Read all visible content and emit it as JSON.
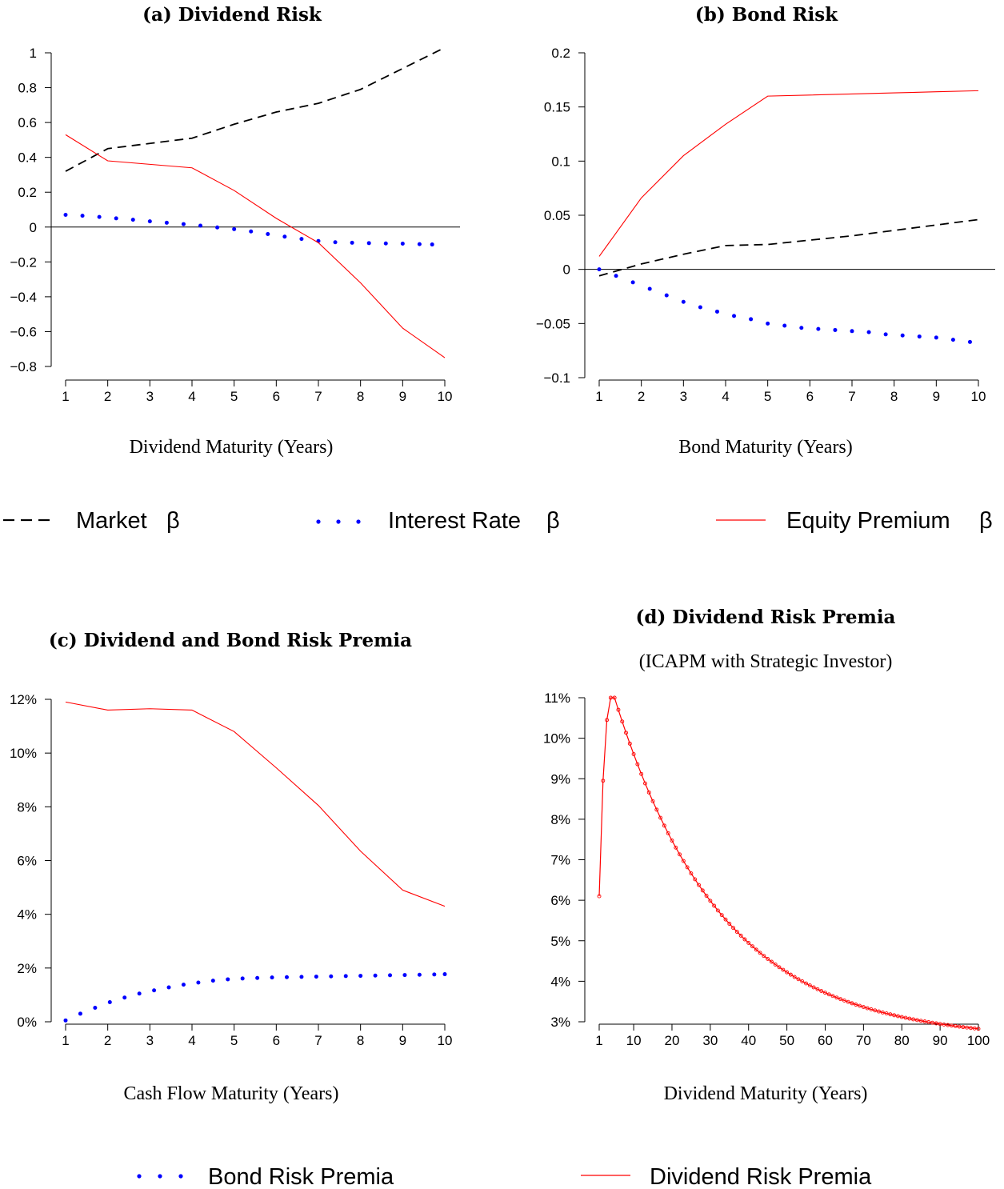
{
  "legend_top": {
    "items": [
      {
        "label": "Market",
        "symbol": "β",
        "style": "dashed",
        "color": "#000000"
      },
      {
        "label": "Interest Rate",
        "symbol": "β",
        "style": "dotted",
        "color": "#0000ff"
      },
      {
        "label": "Equity Premium",
        "symbol": "β",
        "style": "solid",
        "color": "#ff0000"
      }
    ]
  },
  "legend_bottom": {
    "items": [
      {
        "label": "Bond Risk Premia",
        "style": "dotted",
        "color": "#0000ff"
      },
      {
        "label": "Dividend Risk Premia",
        "style": "solid",
        "color": "#ff0000"
      }
    ]
  },
  "chart_data": [
    {
      "id": "a",
      "type": "line",
      "title": "(a) Dividend Risk",
      "subtitle": "",
      "xlabel": "Dividend Maturity (Years)",
      "ylabel": "",
      "xlim": [
        1,
        10
      ],
      "ylim": [
        -0.8,
        1
      ],
      "xticks": [
        1,
        2,
        3,
        4,
        5,
        6,
        7,
        8,
        9,
        10
      ],
      "xtick_labels": [
        "1",
        "2",
        "3",
        "4",
        "5",
        "6",
        "7",
        "8",
        "9",
        "10"
      ],
      "yticks": [
        -0.8,
        -0.6,
        -0.4,
        -0.2,
        0,
        0.2,
        0.4,
        0.6,
        0.8,
        1
      ],
      "ytick_labels": [
        "−0.8",
        "−0.6",
        "−0.4",
        "−0.2",
        "0",
        "0.2",
        "0.4",
        "0.6",
        "0.8",
        "1"
      ],
      "zero_line": true,
      "series": [
        {
          "key": "market",
          "style": "dashed",
          "color": "#000000",
          "x": [
            1,
            2,
            3,
            4,
            5,
            6,
            7,
            8,
            9,
            10
          ],
          "y": [
            0.32,
            0.45,
            0.48,
            0.51,
            0.59,
            0.66,
            0.71,
            0.79,
            0.91,
            1.03
          ]
        },
        {
          "key": "interest",
          "style": "dotted",
          "color": "#0000ff",
          "x": [
            1,
            1.4,
            1.8,
            2.2,
            2.6,
            3,
            3.4,
            3.8,
            4.2,
            4.6,
            5,
            5.4,
            5.8,
            6.2,
            6.6,
            7,
            7.4,
            7.8,
            8.2,
            8.6,
            9,
            9.4,
            9.7
          ],
          "y": [
            0.07,
            0.065,
            0.058,
            0.05,
            0.042,
            0.033,
            0.025,
            0.017,
            0.008,
            -0.002,
            -0.012,
            -0.025,
            -0.04,
            -0.055,
            -0.068,
            -0.08,
            -0.087,
            -0.09,
            -0.092,
            -0.094,
            -0.095,
            -0.098,
            -0.1
          ]
        },
        {
          "key": "equity",
          "style": "solid",
          "color": "#ff0000",
          "x": [
            1,
            2,
            3,
            4,
            5,
            6,
            7,
            8,
            9,
            10
          ],
          "y": [
            0.53,
            0.38,
            0.36,
            0.34,
            0.21,
            0.05,
            -0.09,
            -0.32,
            -0.58,
            -0.75
          ]
        }
      ]
    },
    {
      "id": "b",
      "type": "line",
      "title": "(b) Bond Risk",
      "subtitle": "",
      "xlabel": "Bond Maturity (Years)",
      "ylabel": "",
      "xlim": [
        1,
        10
      ],
      "ylim": [
        -0.1,
        0.2
      ],
      "xticks": [
        1,
        2,
        3,
        4,
        5,
        6,
        7,
        8,
        9,
        10
      ],
      "xtick_labels": [
        "1",
        "2",
        "3",
        "4",
        "5",
        "6",
        "7",
        "8",
        "9",
        "10"
      ],
      "yticks": [
        -0.1,
        -0.05,
        0,
        0.05,
        0.1,
        0.15,
        0.2
      ],
      "ytick_labels": [
        "−0.1",
        "−0.05",
        "0",
        "0.05",
        "0.1",
        "0.15",
        "0.2"
      ],
      "zero_line": true,
      "series": [
        {
          "key": "market",
          "style": "dashed",
          "color": "#000000",
          "x": [
            1,
            2,
            3,
            4,
            5,
            6,
            7,
            8,
            9,
            10
          ],
          "y": [
            -0.006,
            0.005,
            0.014,
            0.022,
            0.023,
            0.027,
            0.031,
            0.036,
            0.041,
            0.046
          ]
        },
        {
          "key": "interest",
          "style": "dotted",
          "color": "#0000ff",
          "x": [
            1,
            1.4,
            1.8,
            2.2,
            2.6,
            3,
            3.4,
            3.8,
            4.2,
            4.6,
            5,
            5.4,
            5.8,
            6.2,
            6.6,
            7,
            7.4,
            7.8,
            8.2,
            8.6,
            9,
            9.4,
            9.8
          ],
          "y": [
            0,
            -0.006,
            -0.012,
            -0.018,
            -0.024,
            -0.03,
            -0.035,
            -0.039,
            -0.043,
            -0.046,
            -0.05,
            -0.052,
            -0.054,
            -0.055,
            -0.056,
            -0.057,
            -0.058,
            -0.06,
            -0.061,
            -0.062,
            -0.063,
            -0.065,
            -0.067
          ]
        },
        {
          "key": "equity",
          "style": "solid",
          "color": "#ff0000",
          "x": [
            1,
            2,
            3,
            4,
            5,
            6,
            7,
            8,
            9,
            10
          ],
          "y": [
            0.012,
            0.066,
            0.105,
            0.134,
            0.16,
            0.161,
            0.162,
            0.163,
            0.164,
            0.165
          ]
        }
      ]
    },
    {
      "id": "c",
      "type": "line",
      "title": "(c) Dividend and Bond Risk Premia",
      "subtitle": "",
      "xlabel": "Cash Flow Maturity (Years)",
      "ylabel": "",
      "xlim": [
        1,
        10
      ],
      "ylim": [
        0,
        12
      ],
      "xticks": [
        1,
        2,
        3,
        4,
        5,
        6,
        7,
        8,
        9,
        10
      ],
      "xtick_labels": [
        "1",
        "2",
        "3",
        "4",
        "5",
        "6",
        "7",
        "8",
        "9",
        "10"
      ],
      "yticks": [
        0,
        2,
        4,
        6,
        8,
        10,
        12
      ],
      "ytick_labels": [
        "0%",
        "2%",
        "4%",
        "6%",
        "8%",
        "10%",
        "12%"
      ],
      "zero_line": false,
      "series": [
        {
          "key": "bond",
          "style": "dotted",
          "color": "#0000ff",
          "x": [
            1,
            1.35,
            1.7,
            2.05,
            2.4,
            2.75,
            3.1,
            3.45,
            3.8,
            4.15,
            4.5,
            4.85,
            5.2,
            5.55,
            5.9,
            6.25,
            6.6,
            6.95,
            7.3,
            7.65,
            8,
            8.35,
            8.7,
            9.05,
            9.4,
            9.75,
            10
          ],
          "y": [
            0.05,
            0.3,
            0.52,
            0.73,
            0.9,
            1.05,
            1.17,
            1.28,
            1.38,
            1.46,
            1.53,
            1.58,
            1.61,
            1.63,
            1.65,
            1.66,
            1.67,
            1.68,
            1.69,
            1.7,
            1.71,
            1.72,
            1.73,
            1.74,
            1.75,
            1.76,
            1.77
          ]
        },
        {
          "key": "dividend",
          "style": "solid",
          "color": "#ff0000",
          "x": [
            1,
            2,
            3,
            4,
            5,
            6,
            7,
            8,
            9,
            10
          ],
          "y": [
            11.9,
            11.6,
            11.65,
            11.6,
            10.8,
            9.45,
            8.05,
            6.35,
            4.9,
            4.3
          ]
        }
      ]
    },
    {
      "id": "d",
      "type": "line",
      "title": "(d) Dividend Risk Premia",
      "subtitle": "(ICAPM with Strategic Investor)",
      "xlabel": "Dividend Maturity (Years)",
      "ylabel": "",
      "xlim": [
        1,
        100
      ],
      "ylim": [
        3,
        11
      ],
      "xticks": [
        1,
        10,
        20,
        30,
        40,
        50,
        60,
        70,
        80,
        90,
        100
      ],
      "xtick_labels": [
        "1",
        "10",
        "20",
        "30",
        "40",
        "50",
        "60",
        "70",
        "80",
        "90",
        "100"
      ],
      "yticks": [
        3,
        4,
        5,
        6,
        7,
        8,
        9,
        10,
        11
      ],
      "ytick_labels": [
        "3%",
        "4%",
        "5%",
        "6%",
        "7%",
        "8%",
        "9%",
        "10%",
        "11%"
      ],
      "zero_line": false,
      "series": [
        {
          "key": "dividend",
          "style": "solid-markers",
          "color": "#ff0000",
          "x": [
            1,
            2,
            3,
            4,
            5
          ],
          "y": [
            6.1,
            8.95,
            10.45,
            11.0,
            11.0
          ]
        }
      ],
      "decay_tail": {
        "from_x": 5,
        "to_x": 100,
        "y_start": 11.0,
        "y_end": 2.9,
        "floor": 2.55,
        "rate": 0.036
      }
    }
  ]
}
